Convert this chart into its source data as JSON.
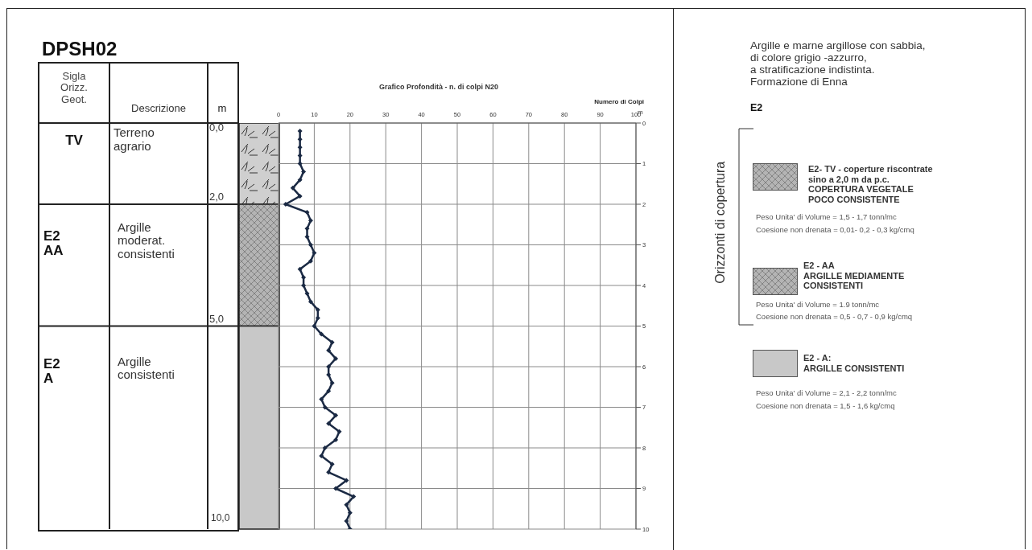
{
  "chart_data": {
    "type": "line",
    "title": "Grafico Profondità - n. di colpi N20",
    "xlabel": "Numero di Colpi",
    "ylabel": "m",
    "x": [
      6,
      6,
      6,
      6,
      6,
      7,
      6,
      4,
      6,
      2,
      8,
      9,
      8,
      8,
      9,
      10,
      9,
      6,
      7,
      7,
      8,
      9,
      11,
      11,
      10,
      12,
      15,
      14,
      16,
      14,
      14,
      15,
      14,
      12,
      13,
      16,
      14,
      17,
      16,
      13,
      12,
      15,
      14,
      19,
      16,
      21,
      19,
      20,
      19,
      20
    ],
    "values": [
      0.2,
      0.4,
      0.6,
      0.8,
      1.0,
      1.2,
      1.4,
      1.6,
      1.8,
      2.0,
      2.2,
      2.4,
      2.6,
      2.8,
      3.0,
      3.2,
      3.4,
      3.6,
      3.8,
      4.0,
      4.2,
      4.4,
      4.6,
      4.8,
      5.0,
      5.2,
      5.4,
      5.6,
      5.8,
      6.0,
      6.2,
      6.4,
      6.6,
      6.8,
      7.0,
      7.2,
      7.4,
      7.6,
      7.8,
      8.0,
      8.2,
      8.4,
      8.6,
      8.8,
      9.0,
      9.2,
      9.4,
      9.6,
      9.8,
      10.0
    ],
    "color": "#1b2a44",
    "marker": "diamond",
    "line_style": "solid",
    "grid": true,
    "xlim": [
      0,
      100
    ],
    "xticks": [
      0,
      10,
      20,
      30,
      40,
      50,
      60,
      70,
      80,
      90,
      100
    ],
    "ylim": [
      10,
      0
    ],
    "yticks": [
      0,
      1,
      2,
      3,
      4,
      5,
      6,
      7,
      8,
      9,
      10
    ],
    "annotations": [
      "DPSH02",
      "Sigla\nOrizz.\nGeot.",
      "Descrizione",
      "m",
      "TV",
      "Terreno\nagrario",
      "0,0",
      "2,0",
      "E2\nAA",
      "Argille\nmoderat.\nconsistenti",
      "5,0",
      "E2\nA",
      "Argille\nconsistenti",
      "10,0",
      "Argille e marne argillose con sabbia,\ndi colore grigio -azzurro,\na stratificazione indistinta.\nFormazione di Enna",
      "E2",
      "Orizzonti di copertura",
      "E2-  TV - coperture riscontrate\nsino a 2,0 m da p.c.\nCOPERTURA VEGETALE\nPOCO CONSISTENTE",
      "Peso Unita' di Volume = 1,5 - 1,7 tonn/mc\nCoesione non drenata = 0,01-  0,2 - 0,3  kg/cmq",
      "E2 - AA\nARGILLE MEDIAMENTE\nCONSISTENTI",
      "Peso Unita' di Volume = 1.9 tonn/mc\nCoesione non drenata = 0,5 - 0,7 - 0,9  kg/cmq",
      "E2 - A:\nARGILLE CONSISTENTI",
      "Peso Unita' di Volume = 2,1 - 2,2 tonn/mc\nCoesione non drenata = 1,5 - 1,6 kg/cmq"
    ]
  }
}
